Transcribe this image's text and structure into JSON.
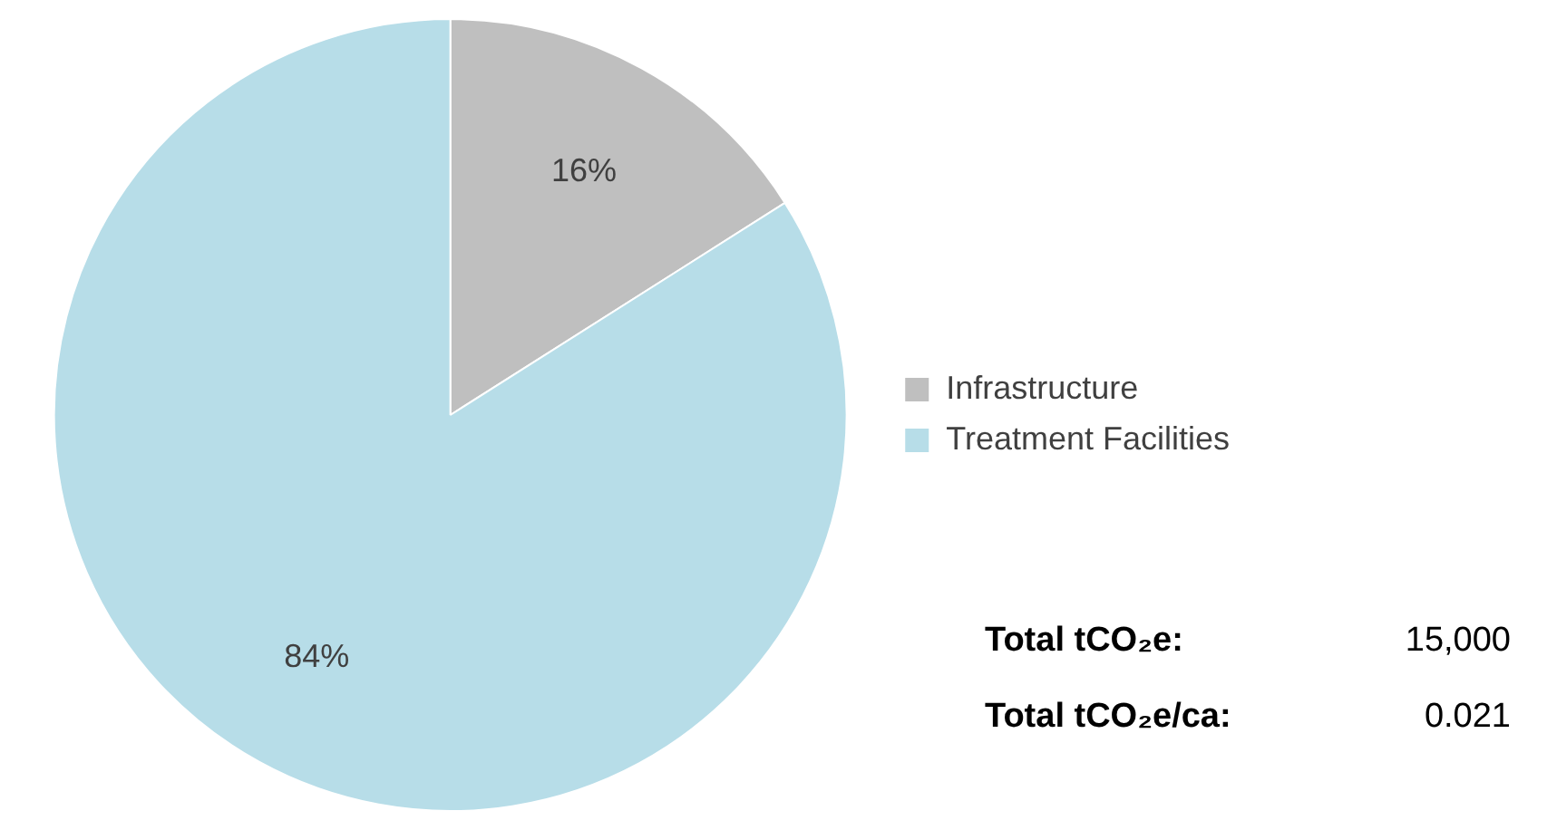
{
  "chart_data": {
    "type": "pie",
    "categories": [
      "Infrastructure",
      "Treatment Facilities"
    ],
    "values": [
      16,
      84
    ],
    "colors": [
      "#bfbfbf",
      "#b7dde8"
    ],
    "value_labels": [
      "16%",
      "84%"
    ],
    "legend": "right",
    "annotations": [
      "Total tCO₂e:",
      "15,000",
      "Total tCO₂e/ca:",
      "0.021"
    ]
  }
}
